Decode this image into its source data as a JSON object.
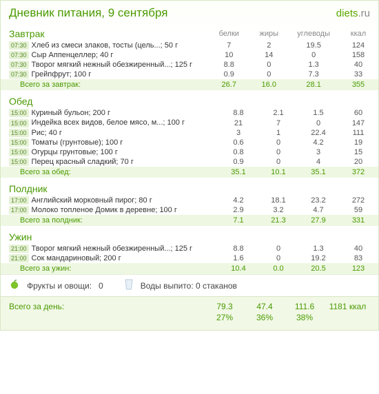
{
  "title": "Дневник питания, 9 сентября",
  "logo": {
    "site": "diets",
    "tld": ".ru"
  },
  "columns": {
    "protein": "белки",
    "fat": "жиры",
    "carbs": "углеводы",
    "kcal": "ккал"
  },
  "meals": [
    {
      "name": "Завтрак",
      "items": [
        {
          "time": "07:30",
          "name": "Хлеб из смеси злаков, тосты (цель...; 50 г",
          "p": "7",
          "f": "2",
          "c": "19.5",
          "k": "124"
        },
        {
          "time": "07:30",
          "name": "Сыр Аппенцеллер; 40 г",
          "p": "10",
          "f": "14",
          "c": "0",
          "k": "158"
        },
        {
          "time": "07:30",
          "name": "Творог мягкий нежный обезжиренный...; 125 г",
          "p": "8.8",
          "f": "0",
          "c": "1.3",
          "k": "40"
        },
        {
          "time": "07:30",
          "name": "Грейпфрут; 100 г",
          "p": "0.9",
          "f": "0",
          "c": "7.3",
          "k": "33"
        }
      ],
      "total_label": "Всего за завтрак:",
      "total": {
        "p": "26.7",
        "f": "16.0",
        "c": "28.1",
        "k": "355"
      }
    },
    {
      "name": "Обед",
      "items": [
        {
          "time": "15:00",
          "name": "Куриный бульон; 200 г",
          "p": "8.8",
          "f": "2.1",
          "c": "1.5",
          "k": "60"
        },
        {
          "time": "15:00",
          "name": "Индейка всех видов, белое мясо, м...; 100 г",
          "p": "21",
          "f": "7",
          "c": "0",
          "k": "147"
        },
        {
          "time": "15:00",
          "name": "Рис; 40 г",
          "p": "3",
          "f": "1",
          "c": "22.4",
          "k": "111"
        },
        {
          "time": "15:00",
          "name": "Томаты (грунтовые); 100 г",
          "p": "0.6",
          "f": "0",
          "c": "4.2",
          "k": "19"
        },
        {
          "time": "15:00",
          "name": "Огурцы грунтовые; 100 г",
          "p": "0.8",
          "f": "0",
          "c": "3",
          "k": "15"
        },
        {
          "time": "15:00",
          "name": "Перец красный сладкий; 70 г",
          "p": "0.9",
          "f": "0",
          "c": "4",
          "k": "20"
        }
      ],
      "total_label": "Всего за обед:",
      "total": {
        "p": "35.1",
        "f": "10.1",
        "c": "35.1",
        "k": "372"
      }
    },
    {
      "name": "Полдник",
      "items": [
        {
          "time": "17:00",
          "name": "Английский морковный пирог; 80 г",
          "p": "4.2",
          "f": "18.1",
          "c": "23.2",
          "k": "272"
        },
        {
          "time": "17:00",
          "name": "Молоко топленое Домик в деревне; 100 г",
          "p": "2.9",
          "f": "3.2",
          "c": "4.7",
          "k": "59"
        }
      ],
      "total_label": "Всего за полдник:",
      "total": {
        "p": "7.1",
        "f": "21.3",
        "c": "27.9",
        "k": "331"
      }
    },
    {
      "name": "Ужин",
      "items": [
        {
          "time": "21:00",
          "name": "Творог мягкий нежный обезжиренный...; 125 г",
          "p": "8.8",
          "f": "0",
          "c": "1.3",
          "k": "40"
        },
        {
          "time": "21:00",
          "name": "Сок мандариновый; 200 г",
          "p": "1.6",
          "f": "0",
          "c": "19.2",
          "k": "83"
        }
      ],
      "total_label": "Всего за ужин:",
      "total": {
        "p": "10.4",
        "f": "0.0",
        "c": "20.5",
        "k": "123"
      }
    }
  ],
  "footer": {
    "fruits_label": "Фрукты и овощи:",
    "fruits_value": "0",
    "water_text": "Воды выпито: 0 стаканов"
  },
  "grand": {
    "label": "Всего за день:",
    "p": "79.3",
    "f": "47.4",
    "c": "111.6",
    "k": "1181 ккал",
    "pct_p": "27%",
    "pct_f": "36%",
    "pct_c": "38%"
  }
}
